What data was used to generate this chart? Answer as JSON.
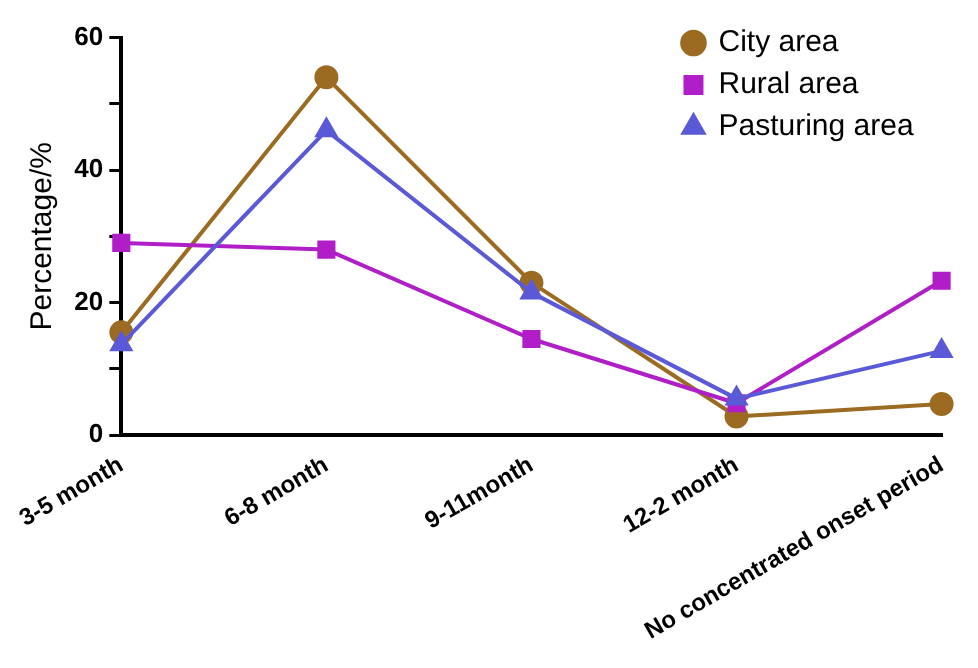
{
  "chart_data": {
    "type": "line",
    "ylabel": "Percentage/%",
    "categories": [
      "3-5 month",
      "6-8 month",
      "9-11month",
      "12-2 month",
      "No concentrated onset period"
    ],
    "series": [
      {
        "name": "City area",
        "color": "#9c6b22",
        "marker": "circle",
        "values": [
          15.5,
          54,
          23,
          2.8,
          4.7
        ]
      },
      {
        "name": "Rural area",
        "color": "#b01ec8",
        "marker": "square",
        "values": [
          29,
          28,
          14.5,
          4.8,
          23.3
        ]
      },
      {
        "name": "Pasturing area",
        "color": "#5a5ad8",
        "marker": "triangle",
        "values": [
          13.7,
          46,
          21.5,
          5.5,
          12.7
        ]
      }
    ],
    "ylim": [
      0,
      60
    ],
    "yticks": [
      0,
      {
        "value": 10,
        "label": null
      },
      20,
      {
        "value": 30,
        "label": null
      },
      40,
      {
        "value": 50,
        "label": null
      },
      60
    ],
    "grid": false,
    "legend": "top right"
  }
}
